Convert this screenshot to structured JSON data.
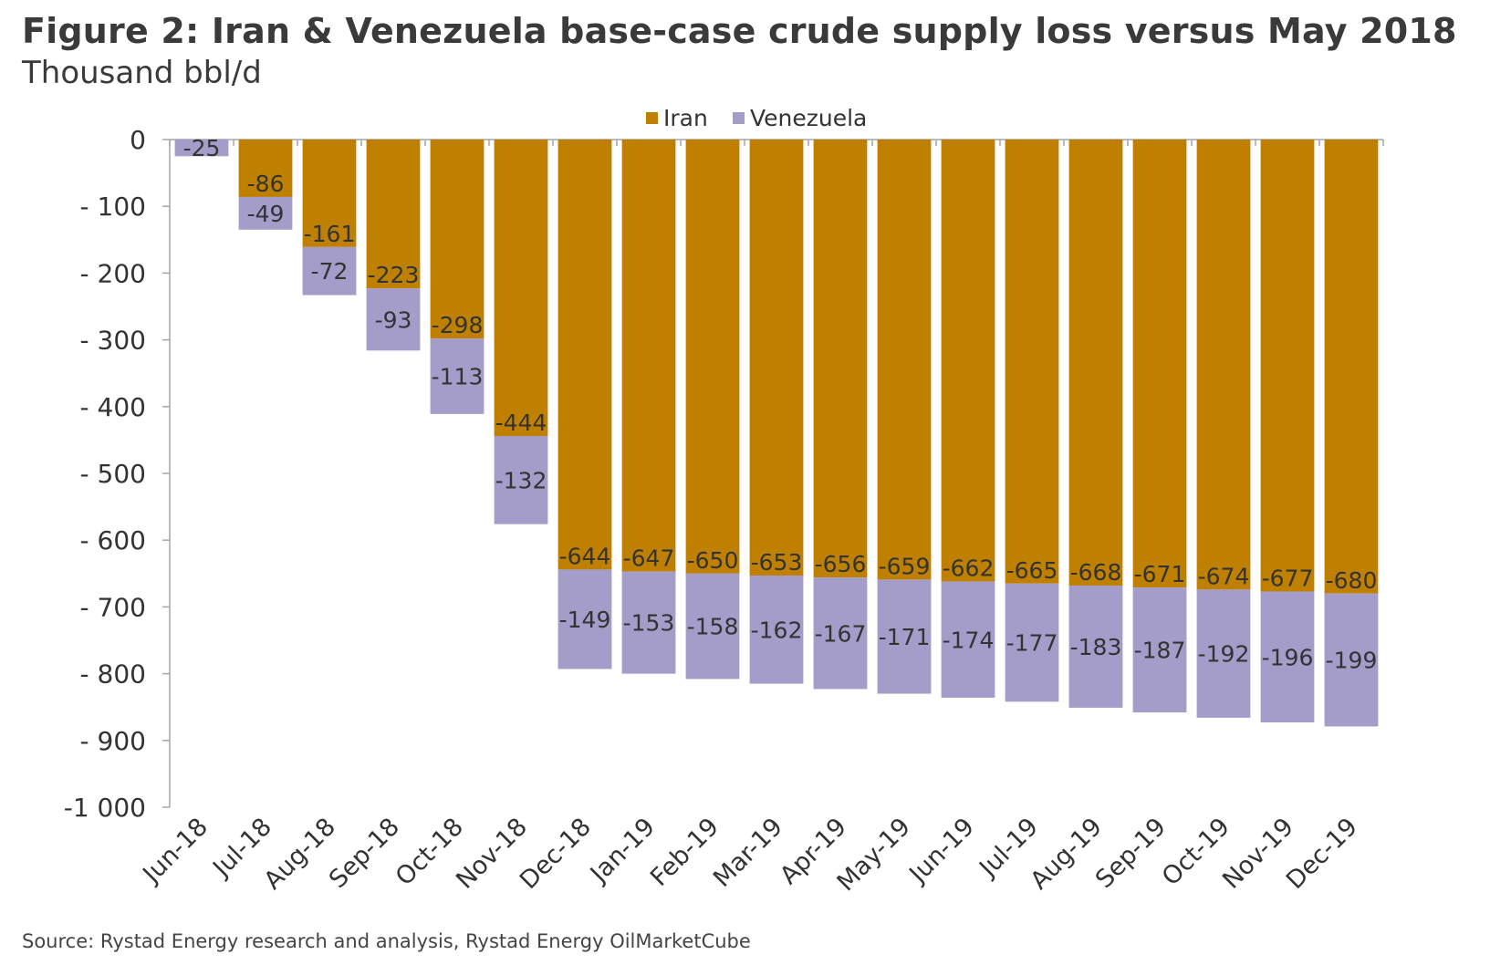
{
  "title": "Figure 2: Iran & Venezuela base-case crude supply loss versus May 2018",
  "subtitle": "Thousand bbl/d",
  "source": "Source: Rystad Energy research and analysis, Rystad Energy OilMarketCube",
  "chart_data": {
    "type": "bar",
    "stacked": true,
    "categories": [
      "Jun-18",
      "Jul-18",
      "Aug-18",
      "Sep-18",
      "Oct-18",
      "Nov-18",
      "Dec-18",
      "Jan-19",
      "Feb-19",
      "Mar-19",
      "Apr-19",
      "May-19",
      "Jun-19",
      "Jul-19",
      "Aug-19",
      "Sep-19",
      "Oct-19",
      "Nov-19",
      "Dec-19"
    ],
    "series": [
      {
        "name": "Iran",
        "color": "#bf8000",
        "values": [
          0,
          -86,
          -161,
          -223,
          -298,
          -444,
          -644,
          -647,
          -650,
          -653,
          -656,
          -659,
          -662,
          -665,
          -668,
          -671,
          -674,
          -677,
          -680
        ]
      },
      {
        "name": "Venezuela",
        "color": "#a49cc9",
        "values": [
          -25,
          -49,
          -72,
          -93,
          -113,
          -132,
          -149,
          -153,
          -158,
          -162,
          -167,
          -171,
          -174,
          -177,
          -183,
          -187,
          -192,
          -196,
          -199
        ]
      }
    ],
    "yticks": [
      0,
      -100,
      -200,
      -300,
      -400,
      -500,
      -600,
      -700,
      -800,
      -900,
      -1000
    ],
    "ytick_labels": [
      "0",
      "- 100",
      "- 200",
      "- 300",
      "- 400",
      "- 500",
      "- 600",
      "- 700",
      "- 800",
      "- 900",
      "-1 000"
    ],
    "ylim": [
      -1000,
      0
    ],
    "legend": "top",
    "grid": false,
    "xlabel": "",
    "ylabel": ""
  }
}
